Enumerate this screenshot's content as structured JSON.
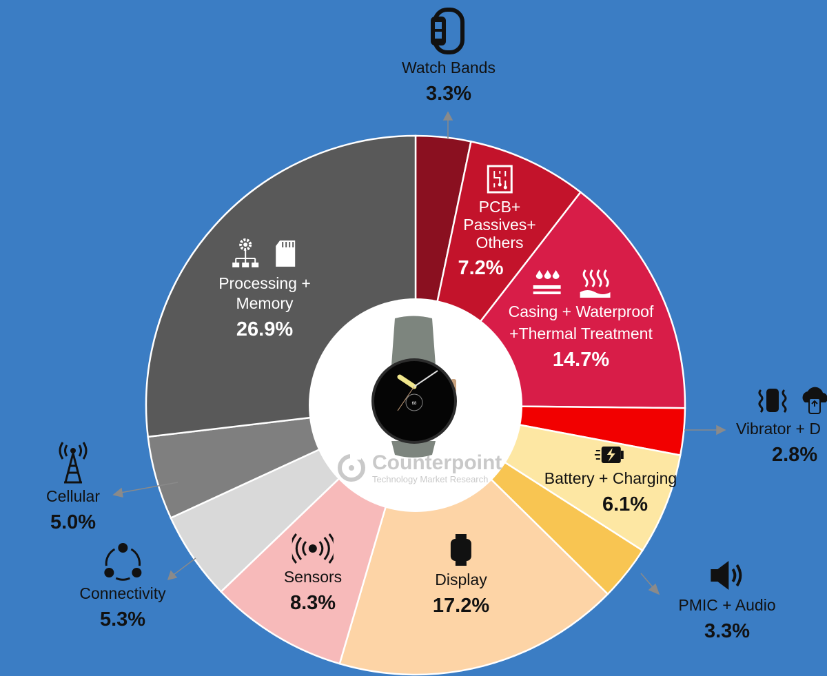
{
  "chart_data": {
    "type": "pie",
    "donut": true,
    "start": "12 o'clock, clockwise",
    "slices": [
      {
        "label": "Watch Bands",
        "value": 3.3,
        "pct_label": "3.3%",
        "color": "#8a1020",
        "icon": "watch-band-icon",
        "label_placement": "outside"
      },
      {
        "label": "PCB+ Passives+ Others",
        "value": 7.2,
        "pct_label": "7.2%",
        "color": "#c3132b",
        "icon": "circuit-board-icon",
        "label_placement": "inside"
      },
      {
        "label": "Casing + Waterproof +Thermal Treatment",
        "value": 14.7,
        "pct_label": "14.7%",
        "color": "#d81d48",
        "icon": "waterproof-thermal-icons",
        "label_placement": "inside"
      },
      {
        "label": "Vibrator + D",
        "value": 2.8,
        "pct_label": "2.8%",
        "color": "#f20000",
        "icon": "vibrator-cloud-icons",
        "label_placement": "outside"
      },
      {
        "label": "Battery + Charging",
        "value": 6.1,
        "pct_label": "6.1%",
        "color": "#fde7a3",
        "icon": "battery-charging-icon",
        "label_placement": "inside"
      },
      {
        "label": "PMIC + Audio",
        "value": 3.3,
        "pct_label": "3.3%",
        "color": "#f8c552",
        "icon": "speaker-icon",
        "label_placement": "outside"
      },
      {
        "label": "Display",
        "value": 17.2,
        "pct_label": "17.2%",
        "color": "#fdd4a6",
        "icon": "smartwatch-display-icon",
        "label_placement": "inside"
      },
      {
        "label": "Sensors",
        "value": 8.3,
        "pct_label": "8.3%",
        "color": "#f7baba",
        "icon": "sensor-signal-icon",
        "label_placement": "inside"
      },
      {
        "label": "Connectivity",
        "value": 5.3,
        "pct_label": "5.3%",
        "color": "#d9d9d9",
        "icon": "connectivity-icon",
        "label_placement": "outside"
      },
      {
        "label": "Cellular",
        "value": 5.0,
        "pct_label": "5.0%",
        "color": "#7f7f7f",
        "icon": "cell-tower-icon",
        "label_placement": "outside"
      },
      {
        "label": "Processing + Memory",
        "value": 26.9,
        "pct_label": "26.9%",
        "color": "#595959",
        "icon": "processor-memory-icons",
        "label_placement": "inside"
      }
    ]
  },
  "background_color": "#3b7dc4",
  "watermark": {
    "brand": "Counterpoint",
    "tagline": "Technology Market Research"
  },
  "labels": {
    "watch_bands": {
      "name": "Watch Bands",
      "pct": "3.3%"
    },
    "pcb": {
      "name1": "PCB+",
      "name2": "Passives+",
      "name3": "Others",
      "pct": "7.2%"
    },
    "casing": {
      "name1": "Casing + Waterproof",
      "name2": "+Thermal Treatment",
      "pct": "14.7%"
    },
    "vibrator": {
      "name": "Vibrator + D",
      "pct": "2.8%"
    },
    "battery": {
      "name": "Battery + Charging",
      "pct": "6.1%"
    },
    "pmic": {
      "name": "PMIC + Audio",
      "pct": "3.3%"
    },
    "display": {
      "name": "Display",
      "pct": "17.2%"
    },
    "sensors": {
      "name": "Sensors",
      "pct": "8.3%"
    },
    "connectivity": {
      "name": "Connectivity",
      "pct": "5.3%"
    },
    "cellular": {
      "name": "Cellular",
      "pct": "5.0%"
    },
    "processing": {
      "name1": "Processing +",
      "name2": "Memory",
      "pct": "26.9%"
    }
  }
}
